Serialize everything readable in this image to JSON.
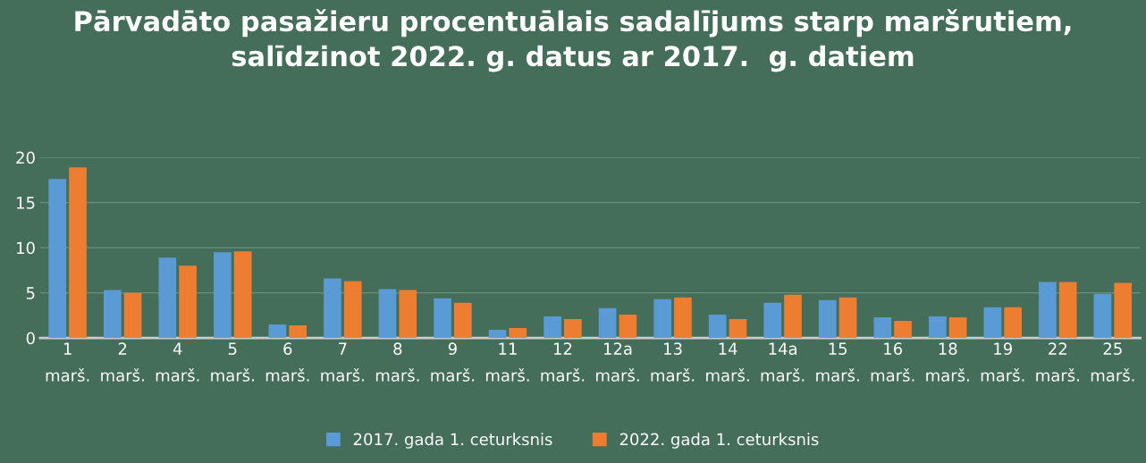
{
  "chart_data": {
    "type": "bar",
    "title": "Pārvadāto pasažieru procentuālais sadalījums starp maršrutiem, salīdzinot 2022. g. datus ar 2017.  g. datiem",
    "categories": [
      "1 marš.",
      "2 marš.",
      "4 marš.",
      "5 marš.",
      "6 marš.",
      "7 marš.",
      "8 marš.",
      "9 marš.",
      "11 marš.",
      "12 marš.",
      "12a marš.",
      "13 marš.",
      "14 marš.",
      "14a marš.",
      "15 marš.",
      "16 marš.",
      "18 marš.",
      "19 marš.",
      "22 marš.",
      "25 marš."
    ],
    "series": [
      {
        "name": "2017. gada 1. ceturksnis",
        "color": "#5b9bd5",
        "values": [
          17.6,
          5.3,
          8.9,
          9.5,
          1.5,
          6.6,
          5.4,
          4.4,
          0.9,
          2.4,
          3.3,
          4.3,
          2.6,
          3.9,
          4.2,
          2.3,
          2.4,
          3.4,
          6.2,
          4.9
        ]
      },
      {
        "name": "2022. gada 1. ceturksnis",
        "color": "#ed7d31",
        "values": [
          18.9,
          5.0,
          8.0,
          9.6,
          1.4,
          6.3,
          5.3,
          3.9,
          1.1,
          2.1,
          2.6,
          4.5,
          2.1,
          4.8,
          4.5,
          1.9,
          2.3,
          3.4,
          6.2,
          6.1
        ]
      }
    ],
    "ylim": [
      0,
      20
    ],
    "yticks": [
      0,
      5,
      10,
      15,
      20
    ],
    "grid": "y",
    "legend": "bottom"
  }
}
